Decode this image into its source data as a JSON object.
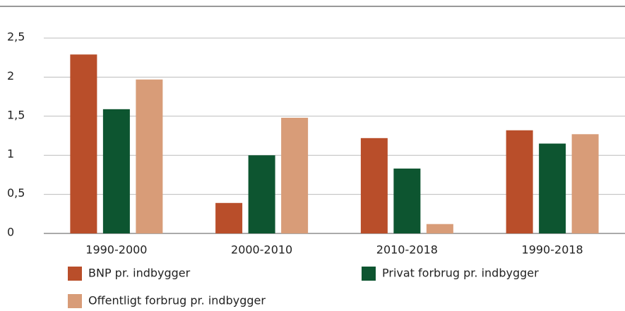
{
  "chart_data": {
    "type": "bar",
    "categories": [
      "1990-2000",
      "2000-2010",
      "2010-2018",
      "1990-2018"
    ],
    "series": [
      {
        "name": "BNP pr. indbygger",
        "color": "#b94e2a",
        "values": [
          2.29,
          0.39,
          1.22,
          1.32
        ]
      },
      {
        "name": "Privat forbrug pr. indbygger",
        "color": "#0d5530",
        "values": [
          1.59,
          1.0,
          0.83,
          1.15
        ]
      },
      {
        "name": "Offentligt forbrug pr. indbygger",
        "color": "#d89c78",
        "values": [
          1.97,
          1.48,
          0.12,
          1.27
        ]
      }
    ],
    "ylim": [
      0,
      2.5
    ],
    "yticks": [
      0,
      {
        "value": 0.5,
        "label": "0,5"
      },
      1,
      {
        "value": 1.5,
        "label": "1,5"
      },
      2,
      {
        "value": 2.5,
        "label": "2,5"
      }
    ],
    "grid": true,
    "legend": "bottom"
  }
}
